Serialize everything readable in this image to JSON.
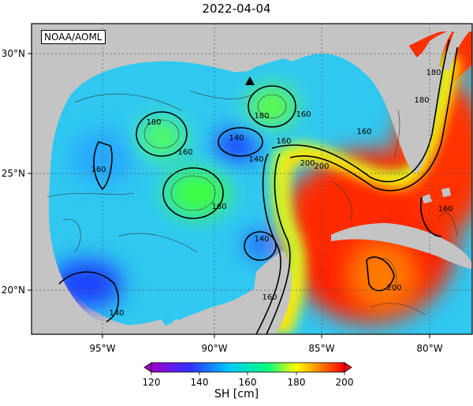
{
  "title": "2022-04-04",
  "source_label": "NOAA/AOML",
  "colors": {
    "land": "#c4c4c4",
    "frame": "#000000",
    "gridline": "#666666"
  },
  "map": {
    "lon_labels": [
      "95°W",
      "90°W",
      "85°W",
      "80°W"
    ],
    "lat_labels": [
      "30°N",
      "25°N",
      "20°N"
    ]
  },
  "contour_labels": [
    "160",
    "180",
    "140",
    "160",
    "180",
    "160",
    "160",
    "140",
    "160",
    "140",
    "140",
    "160",
    "200",
    "200",
    "200",
    "160",
    "180",
    "180",
    "160"
  ],
  "colorbar": {
    "ticks": [
      "120",
      "140",
      "160",
      "180",
      "200"
    ],
    "unit_label": "SH [cm]",
    "stops": [
      "#a000c8",
      "#2a2aff",
      "#00c8ff",
      "#00ff80",
      "#ffff00",
      "#ff7800",
      "#ff0000"
    ]
  }
}
